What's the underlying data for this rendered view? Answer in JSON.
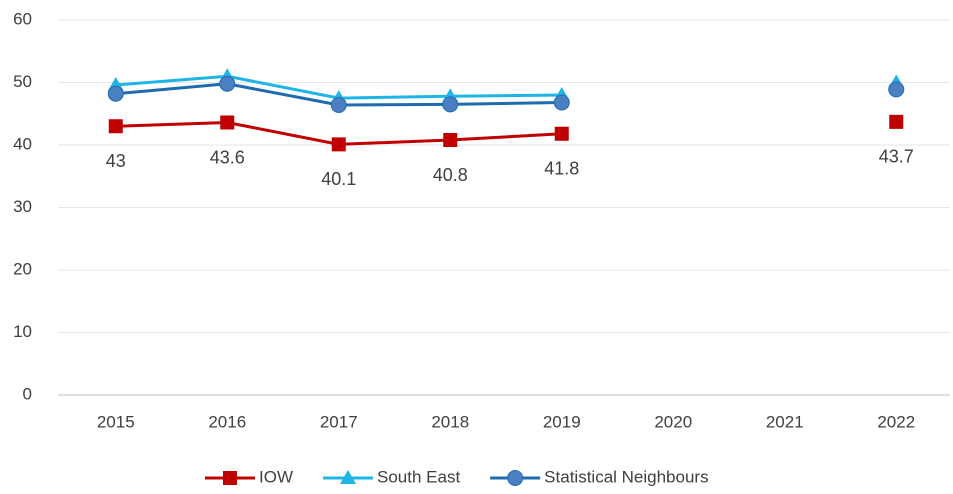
{
  "chart_data": {
    "type": "line",
    "categories": [
      "2015",
      "2016",
      "2017",
      "2018",
      "2019",
      "2020",
      "2021",
      "2022"
    ],
    "series": [
      {
        "name": "IOW",
        "color": "#c00000",
        "marker": "square",
        "values": [
          43,
          43.6,
          40.1,
          40.8,
          41.8,
          null,
          null,
          43.7
        ]
      },
      {
        "name": "South East",
        "color": "#1fb4e8",
        "marker": "triangle",
        "values": [
          49.6,
          51,
          47.5,
          47.8,
          48,
          null,
          null,
          50
        ]
      },
      {
        "name": "Statistical Neighbours",
        "color": "#1f6bb0",
        "marker": "circle",
        "values": [
          48.2,
          49.8,
          46.4,
          46.5,
          46.8,
          null,
          null,
          48.9
        ]
      }
    ],
    "ylim": [
      0,
      60
    ],
    "yticks": [
      0,
      10,
      20,
      30,
      40,
      50,
      60
    ],
    "grid": true,
    "legend": "bottom"
  }
}
